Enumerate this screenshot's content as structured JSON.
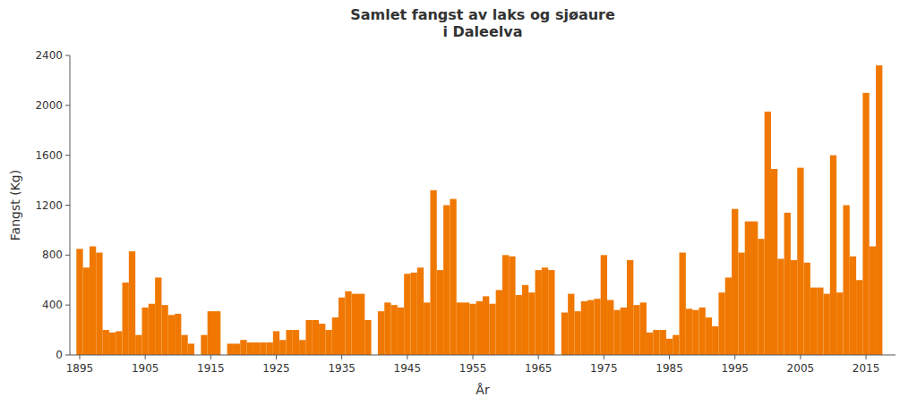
{
  "chart_data": {
    "type": "bar",
    "title": "Samlet fangst av laks og sjøaure\ni Daleelva",
    "x_label": "År",
    "y_label": "Fangst (Kg)",
    "color": "#F07800",
    "grid": false,
    "xlim": [
      1893.5,
      2019.5
    ],
    "xticks": [
      1895,
      1905,
      1915,
      1925,
      1935,
      1945,
      1955,
      1965,
      1975,
      1985,
      1995,
      2005,
      2015
    ],
    "ylim": [
      0,
      2400
    ],
    "yticks": [
      0,
      400,
      800,
      1200,
      1600,
      2000,
      2400
    ],
    "x": [
      1895,
      1896,
      1897,
      1898,
      1899,
      1900,
      1901,
      1902,
      1903,
      1904,
      1905,
      1906,
      1907,
      1908,
      1909,
      1910,
      1911,
      1912,
      1913,
      1914,
      1915,
      1916,
      1917,
      1918,
      1919,
      1920,
      1921,
      1922,
      1923,
      1924,
      1925,
      1926,
      1927,
      1928,
      1929,
      1930,
      1931,
      1932,
      1933,
      1934,
      1935,
      1936,
      1937,
      1938,
      1939,
      1940,
      1941,
      1942,
      1943,
      1944,
      1945,
      1946,
      1947,
      1948,
      1949,
      1950,
      1951,
      1952,
      1953,
      1954,
      1955,
      1956,
      1957,
      1958,
      1959,
      1960,
      1961,
      1962,
      1963,
      1964,
      1965,
      1966,
      1967,
      1968,
      1969,
      1970,
      1971,
      1972,
      1973,
      1974,
      1975,
      1976,
      1977,
      1978,
      1979,
      1980,
      1981,
      1982,
      1983,
      1984,
      1985,
      1986,
      1987,
      1988,
      1989,
      1990,
      1991,
      1992,
      1993,
      1994,
      1995,
      1996,
      1997,
      1998,
      1999,
      2000,
      2001,
      2002,
      2003,
      2004,
      2005,
      2006,
      2007,
      2008,
      2009,
      2010,
      2011,
      2012,
      2013,
      2014,
      2015,
      2016,
      2017
    ],
    "values": [
      850,
      700,
      870,
      820,
      200,
      180,
      190,
      580,
      830,
      160,
      380,
      410,
      620,
      400,
      320,
      330,
      160,
      90,
      0,
      160,
      350,
      350,
      0,
      90,
      90,
      120,
      100,
      100,
      100,
      100,
      190,
      120,
      200,
      200,
      120,
      280,
      280,
      250,
      200,
      300,
      460,
      510,
      490,
      490,
      280,
      0,
      350,
      420,
      400,
      380,
      650,
      660,
      700,
      420,
      1320,
      680,
      1200,
      1250,
      420,
      420,
      410,
      430,
      470,
      410,
      520,
      800,
      790,
      480,
      560,
      500,
      680,
      700,
      680,
      0,
      340,
      490,
      350,
      430,
      440,
      450,
      800,
      440,
      360,
      380,
      760,
      400,
      420,
      180,
      200,
      200,
      130,
      160,
      820,
      370,
      360,
      380,
      300,
      230,
      500,
      620,
      1170,
      820,
      1070,
      1070,
      930,
      1950,
      1490,
      770,
      1140,
      760,
      1500,
      740,
      540,
      540,
      490,
      1600,
      500,
      1200,
      790,
      600,
      2100,
      870,
      2320
    ]
  }
}
